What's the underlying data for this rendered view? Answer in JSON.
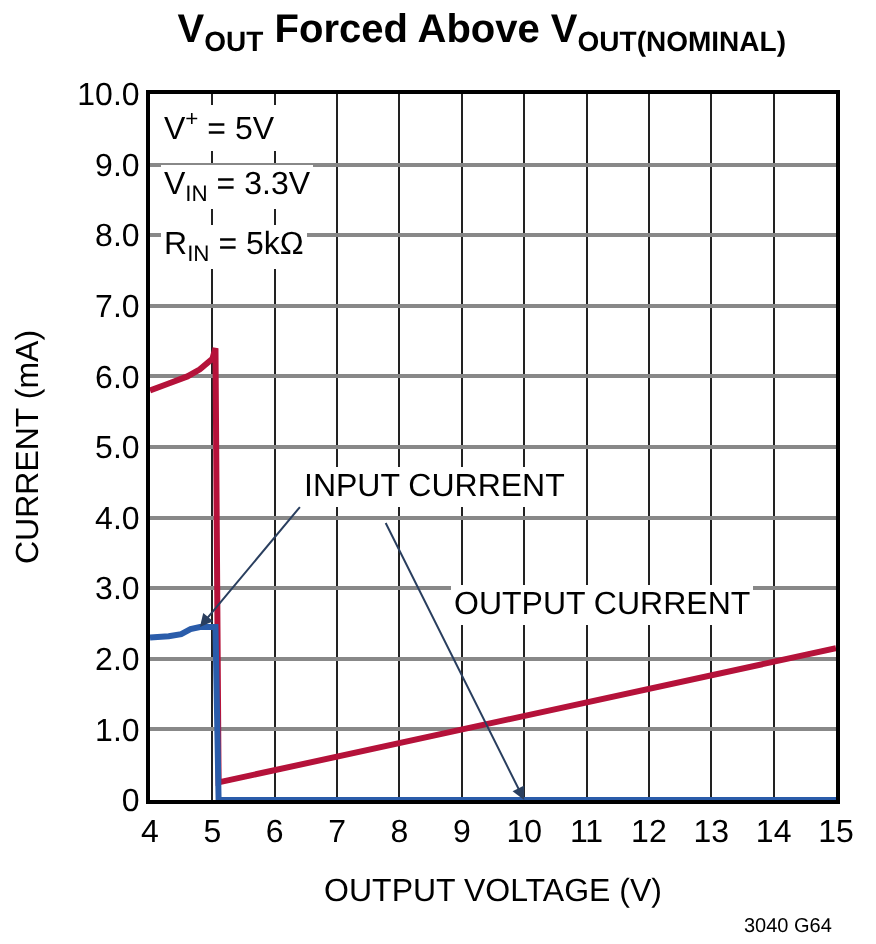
{
  "chart_data": {
    "type": "line",
    "title": "V$_{OUT}$ Forced Above V$_{OUT(NOMINAL)}$",
    "xlabel": "OUTPUT VOLTAGE (V)",
    "ylabel": "CURRENT (mA)",
    "xlim": [
      4,
      15
    ],
    "xticks": [
      4,
      5,
      6,
      7,
      8,
      9,
      10,
      11,
      12,
      13,
      14,
      15
    ],
    "ylim": [
      0,
      10
    ],
    "yticks": [
      0,
      {
        "value": 1,
        "label": "1.0"
      },
      {
        "value": 2,
        "label": "2.0"
      },
      {
        "value": 3,
        "label": "3.0"
      },
      {
        "value": 4,
        "label": "4.0"
      },
      {
        "value": 5,
        "label": "5.0"
      },
      {
        "value": 6,
        "label": "6.0"
      },
      {
        "value": 7,
        "label": "7.0"
      },
      {
        "value": 8,
        "label": "8.0"
      },
      {
        "value": 9,
        "label": "9.0"
      },
      {
        "value": 10,
        "label": "10.0"
      }
    ],
    "grid": true,
    "marker": "none",
    "line_style": "solid",
    "series": [
      {
        "color": "#b5123a",
        "x": [
          4,
          4.3,
          4.6,
          4.8,
          5.0,
          5.05,
          5.1,
          15
        ],
        "values": [
          5.8,
          5.9,
          6.0,
          6.1,
          6.25,
          6.4,
          0.25,
          2.15
        ]
      },
      {
        "color": "#2a5caa",
        "x": [
          4,
          4.3,
          4.5,
          4.65,
          4.8,
          5.05,
          5.1,
          10,
          15
        ],
        "values": [
          2.3,
          2.32,
          2.35,
          2.42,
          2.45,
          2.45,
          0,
          0,
          0
        ]
      }
    ],
    "annotations": [
      {
        "text": "INPUT CURRENT",
        "x": 4.8,
        "y": 2.45
      },
      "OUTPUT CURRENT",
      "V$^{+}$ = 5V",
      "V$_{IN}$ = 3.3V",
      "R$_{IN}$ = 5kΩ",
      "3040 G64"
    ]
  }
}
